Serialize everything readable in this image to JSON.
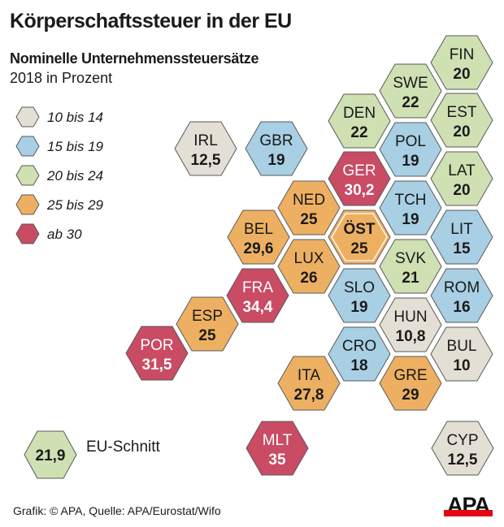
{
  "title": "Körperschaftssteuer in der EU",
  "subtitle": "Nominelle Unternehmenssteuersätze",
  "period": "2018 in Prozent",
  "source": "Grafik: © APA, Quelle: APA/Eurostat/Wifo",
  "logo": "APA",
  "colors": {
    "10-14": "#e3dfd4",
    "15-19": "#a8cfe3",
    "20-24": "#cfe0b2",
    "25-29": "#edb062",
    "30+": "#c94b64"
  },
  "legend": [
    {
      "label": "10 bis 14",
      "color": "#e3dfd4"
    },
    {
      "label": "15 bis 19",
      "color": "#a8cfe3"
    },
    {
      "label": "20 bis 24",
      "color": "#cfe0b2"
    },
    {
      "label": "25 bis 29",
      "color": "#edb062"
    },
    {
      "label": "ab 30",
      "color": "#c94b64"
    }
  ],
  "eu_average": {
    "value": "21,9",
    "label": "EU-Schnitt"
  },
  "countries": [
    {
      "code": "FIN",
      "value": "20"
    },
    {
      "code": "SWE",
      "value": "22"
    },
    {
      "code": "DEN",
      "value": "22"
    },
    {
      "code": "EST",
      "value": "20"
    },
    {
      "code": "IRL",
      "value": "12,5"
    },
    {
      "code": "GBR",
      "value": "19"
    },
    {
      "code": "POL",
      "value": "19"
    },
    {
      "code": "GER",
      "value": "30,2"
    },
    {
      "code": "LAT",
      "value": "20"
    },
    {
      "code": "NED",
      "value": "25"
    },
    {
      "code": "TCH",
      "value": "19"
    },
    {
      "code": "BEL",
      "value": "29,6"
    },
    {
      "code": "ÖST",
      "value": "25",
      "highlight": true
    },
    {
      "code": "LIT",
      "value": "15"
    },
    {
      "code": "LUX",
      "value": "26"
    },
    {
      "code": "SVK",
      "value": "21"
    },
    {
      "code": "FRA",
      "value": "34,4"
    },
    {
      "code": "SLO",
      "value": "19"
    },
    {
      "code": "ROM",
      "value": "16"
    },
    {
      "code": "ESP",
      "value": "25"
    },
    {
      "code": "HUN",
      "value": "10,8"
    },
    {
      "code": "POR",
      "value": "31,5"
    },
    {
      "code": "CRO",
      "value": "18"
    },
    {
      "code": "BUL",
      "value": "10"
    },
    {
      "code": "ITA",
      "value": "27,8"
    },
    {
      "code": "GRE",
      "value": "29"
    },
    {
      "code": "MLT",
      "value": "35"
    },
    {
      "code": "CYP",
      "value": "12,5"
    }
  ]
}
